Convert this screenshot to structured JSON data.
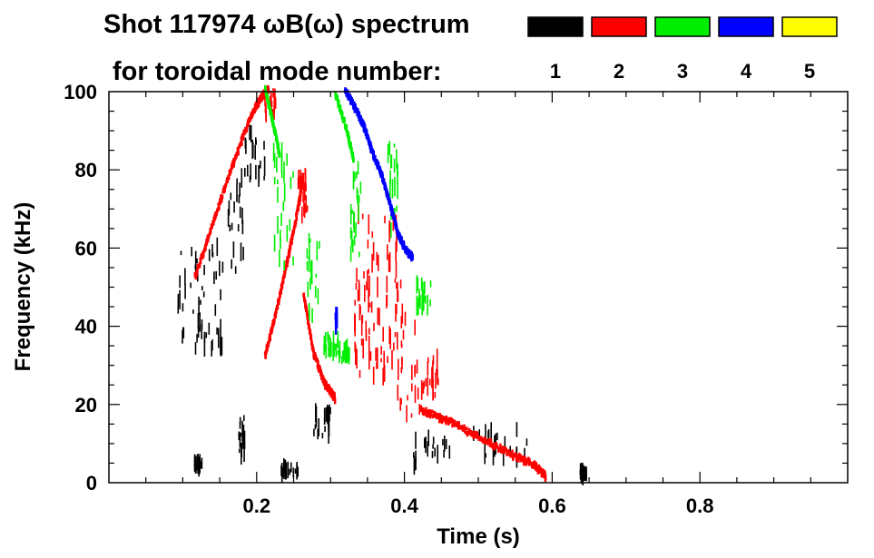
{
  "chart_data": {
    "type": "scatter",
    "title_line1": "Shot 117974 ωB(ω) spectrum",
    "title_line2": "for toroidal mode number:",
    "xlabel": "Time (s)",
    "ylabel": "Frequency (kHz)",
    "xlim": [
      0.0,
      1.0
    ],
    "ylim": [
      0,
      100
    ],
    "x_ticks": [
      {
        "value": 0.2,
        "label": "0.2"
      },
      {
        "value": 0.4,
        "label": "0.4"
      },
      {
        "value": 0.6,
        "label": "0.6"
      },
      {
        "value": 0.8,
        "label": "0.8"
      }
    ],
    "x_minor_step": 0.05,
    "y_ticks": [
      {
        "value": 0,
        "label": "0"
      },
      {
        "value": 20,
        "label": "20"
      },
      {
        "value": 40,
        "label": "40"
      },
      {
        "value": 60,
        "label": "60"
      },
      {
        "value": 80,
        "label": "80"
      },
      {
        "value": 100,
        "label": "100"
      }
    ],
    "y_minor_step": 5,
    "legend": [
      {
        "mode": "1",
        "color": "#000000"
      },
      {
        "mode": "2",
        "color": "#ff0000"
      },
      {
        "mode": "3",
        "color": "#00ee00"
      },
      {
        "mode": "4",
        "color": "#0000ff"
      },
      {
        "mode": "5",
        "color": "#ffff00"
      }
    ],
    "series": [
      {
        "name": "n=1",
        "color": "#000000",
        "regions": [
          {
            "t": [
              0.09,
              0.155
            ],
            "f": [
              34,
              61
            ]
          },
          {
            "t": [
              0.16,
              0.182
            ],
            "f": [
              52,
              78
            ]
          },
          {
            "t": [
              0.182,
              0.21
            ],
            "f": [
              77,
              90
            ]
          },
          {
            "t": [
              0.175,
              0.185
            ],
            "f": [
              7,
              17
            ]
          },
          {
            "t": [
              0.275,
              0.305
            ],
            "f": [
              12,
              19
            ]
          },
          {
            "t": [
              0.405,
              0.465
            ],
            "f": [
              3,
              12
            ]
          },
          {
            "t": [
              0.49,
              0.565
            ],
            "f": [
              6,
              14
            ]
          },
          {
            "t": [
              0.23,
              0.255
            ],
            "f": [
              2.5,
              4
            ]
          },
          {
            "t": [
              0.115,
              0.125
            ],
            "f": [
              4,
              5.5
            ]
          },
          {
            "t": [
              0.635,
              0.648
            ],
            "f": [
              1.5,
              3
            ]
          }
        ]
      },
      {
        "name": "n=2",
        "color": "#ff0000",
        "paths": [
          {
            "t": [
              0.115,
              0.14,
              0.165,
              0.19,
              0.205,
              0.215
            ],
            "f": [
              52,
              66,
              80,
              93,
              98,
              100
            ]
          },
          {
            "t": [
              0.21,
              0.225,
              0.24,
              0.255,
              0.262
            ],
            "f": [
              32,
              43,
              56,
              70,
              78
            ]
          },
          {
            "t": [
              0.262,
              0.275,
              0.29,
              0.305
            ],
            "f": [
              48,
              33,
              25,
              21
            ]
          },
          {
            "t": [
              0.42,
              0.46,
              0.5,
              0.54,
              0.575,
              0.59
            ],
            "f": [
              18,
              15,
              11,
              7,
              4,
              1
            ]
          }
        ],
        "regions": [
          {
            "t": [
              0.21,
              0.225
            ],
            "f": [
              93,
              100
            ]
          },
          {
            "t": [
              0.255,
              0.268
            ],
            "f": [
              68,
              80
            ]
          },
          {
            "t": [
              0.33,
              0.395
            ],
            "f": [
              25,
              70
            ]
          },
          {
            "t": [
              0.39,
              0.42
            ],
            "f": [
              17,
              44
            ]
          },
          {
            "t": [
              0.42,
              0.445
            ],
            "f": [
              22,
              32
            ]
          }
        ]
      },
      {
        "name": "n=3",
        "color": "#00ee00",
        "paths": [
          {
            "t": [
              0.21,
              0.22,
              0.23
            ],
            "f": [
              100,
              92,
              83
            ]
          },
          {
            "t": [
              0.305,
              0.32,
              0.33
            ],
            "f": [
              99,
              90,
              82
            ]
          }
        ],
        "regions": [
          {
            "t": [
              0.222,
              0.25
            ],
            "f": [
              55,
              85
            ]
          },
          {
            "t": [
              0.265,
              0.285
            ],
            "f": [
              42,
              63
            ]
          },
          {
            "t": [
              0.29,
              0.31
            ],
            "f": [
              33,
              38
            ]
          },
          {
            "t": [
              0.31,
              0.325
            ],
            "f": [
              31,
              35
            ]
          },
          {
            "t": [
              0.325,
              0.34
            ],
            "f": [
              57,
              83
            ]
          },
          {
            "t": [
              0.375,
              0.39
            ],
            "f": [
              64,
              88
            ]
          },
          {
            "t": [
              0.415,
              0.435
            ],
            "f": [
              45,
              51
            ]
          }
        ]
      },
      {
        "name": "n=4",
        "color": "#0000ff",
        "paths": [
          {
            "t": [
              0.318,
              0.335,
              0.345,
              0.355,
              0.368,
              0.38,
              0.39,
              0.4,
              0.41
            ],
            "f": [
              100,
              94,
              90,
              84,
              78,
              70,
              63,
              59,
              57
            ]
          }
        ],
        "regions": [
          {
            "t": [
              0.305,
              0.308
            ],
            "f": [
              40,
              43
            ]
          }
        ]
      },
      {
        "name": "n=5",
        "color": "#ffff00",
        "regions": []
      }
    ]
  }
}
